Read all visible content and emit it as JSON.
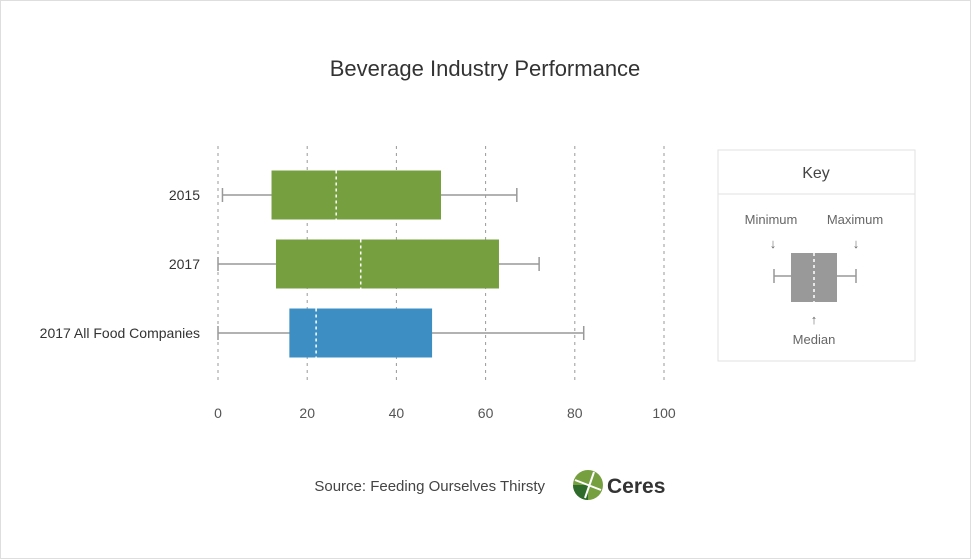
{
  "chart_data": {
    "type": "boxplot",
    "title": "Beverage Industry Performance",
    "xlim": [
      0,
      100
    ],
    "x_ticks": [
      0,
      20,
      40,
      60,
      80,
      100
    ],
    "grid": true,
    "categories": [
      "2015",
      "2017",
      "2017 All Food Companies"
    ],
    "series": [
      {
        "category": "2015",
        "min": 1,
        "q1": 12,
        "median": 26.5,
        "q3": 50,
        "max": 67,
        "color": "#76a03f"
      },
      {
        "category": "2017",
        "min": 0,
        "q1": 13,
        "median": 32,
        "q3": 63,
        "max": 72,
        "color": "#76a03f"
      },
      {
        "category": "2017 All Food Companies",
        "min": 0,
        "q1": 16,
        "median": 22,
        "q3": 48,
        "max": 82,
        "color": "#3d8fc3"
      }
    ]
  },
  "key": {
    "title": "Key",
    "minimum": "Minimum",
    "maximum": "Maximum",
    "median": "Median",
    "arrow_down": "↓",
    "arrow_up": "↑",
    "box_color": "#999999"
  },
  "footer": {
    "source": "Source: Feeding Ourselves Thirsty",
    "brand": "Ceres",
    "brand_colors": [
      "#76a03f",
      "#2f6b2a"
    ]
  }
}
